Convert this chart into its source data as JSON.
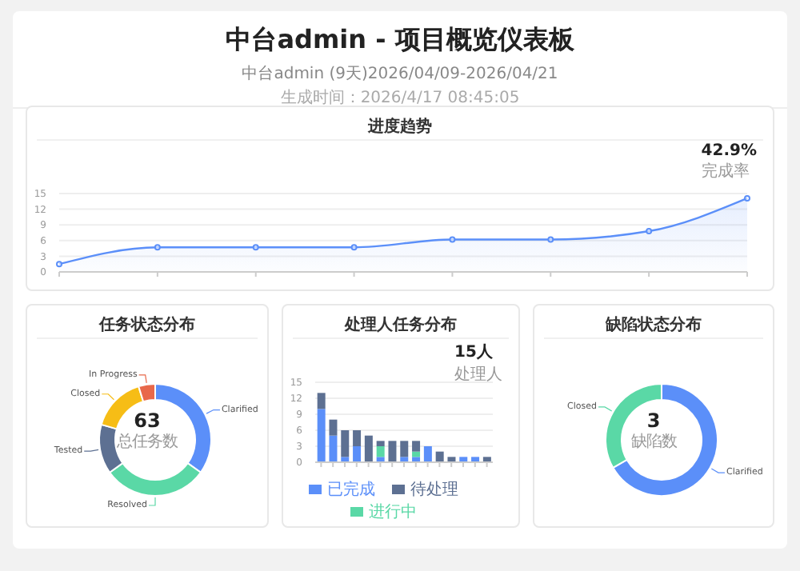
{
  "chart_data": [
    {
      "type": "other",
      "title": "中台admin - 项目概览仪表板",
      "subtitle": "中台admin (9天)2026/04/09-2026/04/21",
      "annotations": [
        "生成时间：2026/4/17 08:45:05"
      ]
    },
    {
      "type": "area",
      "title": "进度趋势",
      "annotations": [
        "42.9%",
        "完成率"
      ],
      "categories": [
        null,
        null,
        null,
        null,
        null,
        null,
        null,
        null
      ],
      "series": [
        {
          "color": "#5b8ff9",
          "values": [
            1.5,
            4.7,
            4.7,
            4.7,
            6.2,
            6.2,
            7.8,
            14.1
          ]
        }
      ],
      "ylim": [
        0,
        15
      ],
      "yticks": [
        0,
        3,
        6,
        9,
        12,
        15
      ],
      "grid": "y",
      "marker": "circle"
    },
    {
      "type": "donut",
      "title": "任务状态分布",
      "annotations": [
        "63",
        "总任务数"
      ],
      "categories": [
        "Clarified",
        "Resolved",
        "Tested",
        "Closed",
        "In Progress"
      ],
      "values": [
        34.9,
        30.2,
        14.3,
        15.8,
        4.8
      ],
      "colors": [
        "#5b8ff9",
        "#5ad8a6",
        "#5d7092",
        "#f6bd16",
        "#e8684a"
      ]
    },
    {
      "type": "bar",
      "title": "处理人任务分布",
      "annotations": [
        "15人",
        "处理人"
      ],
      "stacked": true,
      "categories": [
        null,
        null,
        null,
        null,
        null,
        null,
        null,
        null,
        null,
        null,
        null,
        null,
        null,
        null,
        null
      ],
      "series": [
        {
          "name": "已完成",
          "color": "#5b8ff9",
          "values": [
            10,
            5,
            1,
            3,
            0,
            1,
            0,
            1,
            1,
            3,
            0,
            0,
            1,
            1,
            0
          ]
        },
        {
          "name": "进行中",
          "color": "#5ad8a6",
          "values": [
            0,
            0,
            0,
            0,
            0,
            2,
            0,
            0,
            1,
            0,
            0,
            0,
            0,
            0,
            0
          ]
        },
        {
          "name": "待处理",
          "color": "#5d7092",
          "values": [
            3,
            3,
            5,
            3,
            5,
            1,
            4,
            3,
            2,
            0,
            2,
            1,
            0,
            0,
            1
          ]
        }
      ],
      "ylim": [
        0,
        15
      ],
      "yticks": [
        0,
        3,
        6,
        9,
        12,
        15
      ],
      "grid": "y",
      "legend": "bottom"
    },
    {
      "type": "donut",
      "title": "缺陷状态分布",
      "annotations": [
        "3",
        "缺陷数"
      ],
      "categories": [
        "Clarified",
        "Closed"
      ],
      "values": [
        66.7,
        33.3
      ],
      "colors": [
        "#5b8ff9",
        "#5ad8a6"
      ]
    }
  ]
}
